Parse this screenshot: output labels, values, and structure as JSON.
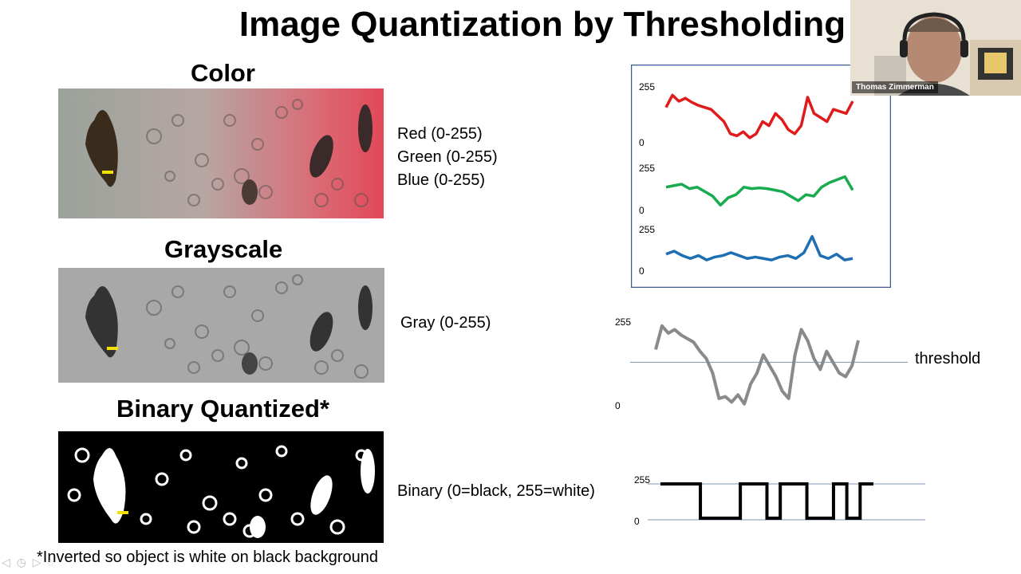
{
  "slide": {
    "title": "Image Quantization by Thresholding",
    "sections": {
      "color": "Color",
      "grayscale": "Grayscale",
      "binary": "Binary Quantized*"
    },
    "labels": {
      "red": "Red (0-255)",
      "green": "Green (0-255)",
      "blue": "Blue (0-255)",
      "gray": "Gray (0-255)",
      "binary": "Binary (0=black, 255=white)"
    },
    "footnote": "*Inverted so object is white on black background",
    "threshold_label": "threshold"
  },
  "video": {
    "participant_name": "Thomas Zimmerman"
  },
  "chart_data": [
    {
      "type": "line",
      "title": "",
      "xlabel": "",
      "ylabel": "",
      "series": [
        {
          "color": "#e01b1b",
          "ylim": [
            0,
            255
          ],
          "ytick_labels": [
            "255",
            "0"
          ],
          "values": [
            170,
            230,
            200,
            215,
            195,
            180,
            170,
            160,
            130,
            100,
            40,
            30,
            50,
            20,
            40,
            100,
            80,
            140,
            110,
            60,
            40,
            80,
            220,
            140,
            120,
            100,
            160,
            150,
            140,
            200
          ]
        },
        {
          "color": "#1aab50",
          "ylim": [
            0,
            255
          ],
          "ytick_labels": [
            "255",
            "0"
          ],
          "values": [
            150,
            160,
            170,
            140,
            150,
            120,
            90,
            30,
            80,
            100,
            150,
            140,
            145,
            140,
            130,
            120,
            90,
            60,
            100,
            90,
            150,
            180,
            200,
            220,
            130
          ]
        },
        {
          "color": "#1e6eb4",
          "ylim": [
            0,
            255
          ],
          "ytick_labels": [
            "255",
            "0"
          ],
          "values": [
            110,
            130,
            100,
            80,
            100,
            70,
            90,
            100,
            120,
            100,
            80,
            90,
            80,
            70,
            90,
            100,
            80,
            120,
            230,
            100,
            80,
            110,
            70,
            80
          ]
        }
      ]
    },
    {
      "type": "line",
      "title": "",
      "color": "#8a8a8a",
      "ylim": [
        0,
        255
      ],
      "ytick_labels": [
        "255",
        "0"
      ],
      "threshold": 140,
      "values": [
        175,
        240,
        220,
        230,
        215,
        205,
        195,
        170,
        150,
        110,
        40,
        45,
        30,
        50,
        25,
        80,
        110,
        160,
        130,
        100,
        60,
        40,
        160,
        230,
        200,
        150,
        120,
        170,
        140,
        110,
        100,
        130,
        200
      ]
    },
    {
      "type": "line",
      "title": "",
      "step": true,
      "color": "#000000",
      "ylim": [
        0,
        255
      ],
      "ytick_labels": [
        "255",
        "0"
      ],
      "values": [
        255,
        255,
        255,
        0,
        0,
        0,
        255,
        255,
        0,
        255,
        255,
        0,
        0,
        255,
        0,
        255,
        255
      ]
    }
  ]
}
